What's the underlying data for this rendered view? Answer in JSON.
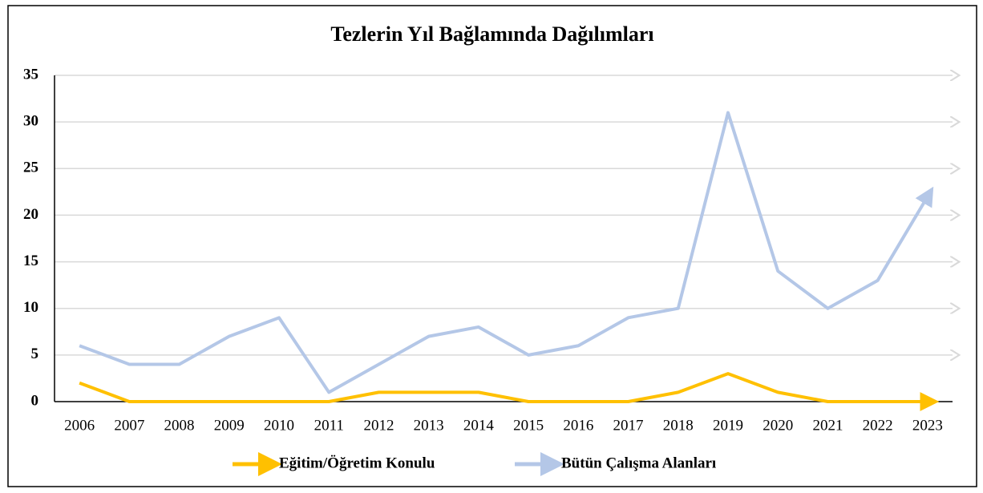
{
  "chart_data": {
    "type": "line",
    "title": "Tezlerin Yıl Bağlamında Dağılımları",
    "categories": [
      "2006",
      "2007",
      "2008",
      "2009",
      "2010",
      "2011",
      "2012",
      "2013",
      "2014",
      "2015",
      "2016",
      "2017",
      "2018",
      "2019",
      "2020",
      "2021",
      "2022",
      "2023"
    ],
    "series": [
      {
        "name": "Eğitim/Öğretim Konulu",
        "color": "#ffc000",
        "values": [
          2,
          0,
          0,
          0,
          0,
          0,
          1,
          1,
          1,
          0,
          0,
          0,
          1,
          3,
          1,
          0,
          0,
          0
        ]
      },
      {
        "name": "Bütün Çalışma Alanları",
        "color": "#b4c7e7",
        "values": [
          6,
          4,
          4,
          7,
          9,
          1,
          4,
          7,
          8,
          5,
          6,
          9,
          10,
          31,
          14,
          10,
          13,
          22
        ]
      }
    ],
    "ylim": [
      0,
      35
    ],
    "yticks": [
      0,
      5,
      10,
      15,
      20,
      25,
      30,
      35
    ],
    "grid": true,
    "legend": "bottom"
  }
}
